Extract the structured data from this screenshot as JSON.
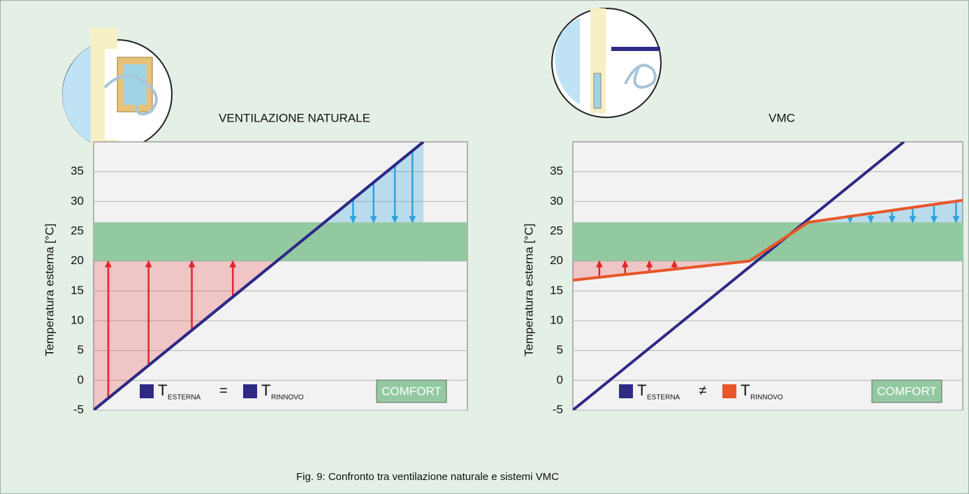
{
  "caption": "Fig. 9: Confronto tra ventilazione naturale e sistemi VMC",
  "chart_data": [
    {
      "type": "line",
      "title": "VENTILAZIONE NATURALE",
      "y_label": "Temperatura esterna [°C]",
      "ylim": [
        -5,
        40
      ],
      "yticks": [
        -5,
        0,
        5,
        10,
        15,
        20,
        25,
        30,
        35
      ],
      "xlim": [
        -5,
        46
      ],
      "grid": true,
      "series": [
        {
          "name": "T",
          "subscript": "ESTERNA",
          "color": "#2e2a86",
          "x": [
            -5,
            40
          ],
          "values": [
            -5,
            40
          ]
        },
        {
          "name": "T",
          "subscript": "RINNOVO",
          "color": "#2e2a86",
          "x": [
            -5,
            40
          ],
          "values": [
            -5,
            40
          ]
        }
      ],
      "legend_operator": "=",
      "renewal_series": 1,
      "comfort": {
        "range": [
          20,
          26.5
        ],
        "color": "#93c9a0",
        "label": "COMFORT"
      },
      "arrows": {
        "up_x": [
          -3,
          2.5,
          8.4,
          14
        ],
        "down_x": [
          30.4,
          33.2,
          36.1,
          38.5
        ],
        "up_color": "#e3242b",
        "down_color": "#2aa3dc"
      }
    },
    {
      "type": "line",
      "title": "VMC",
      "y_label": "Temperatura esterna [°C]",
      "ylim": [
        -5,
        40
      ],
      "yticks": [
        -5,
        0,
        5,
        10,
        15,
        20,
        25,
        30,
        35
      ],
      "xlim": [
        -5,
        48
      ],
      "grid": true,
      "series": [
        {
          "name": "T",
          "subscript": "ESTERNA",
          "color": "#2e2a86",
          "x": [
            -5,
            40
          ],
          "values": [
            -5,
            40
          ]
        },
        {
          "name": "T",
          "subscript": "RINNOVO",
          "color": "#e8562a",
          "x": [
            -5,
            19,
            27,
            48
          ],
          "values": [
            16.8,
            20,
            26.5,
            30.2
          ]
        }
      ],
      "legend_operator": "≠",
      "renewal_series": 1,
      "comfort": {
        "range": [
          20,
          26.5
        ],
        "color": "#93c9a0",
        "label": "COMFORT"
      },
      "arrows": {
        "up_x": [
          -1.4,
          2.1,
          5.4,
          8.8
        ],
        "down_x": [
          32.7,
          35.5,
          38.4,
          41.2,
          44.1,
          47.1
        ],
        "up_color": "#e3242b",
        "down_color": "#2aa3dc"
      }
    }
  ]
}
